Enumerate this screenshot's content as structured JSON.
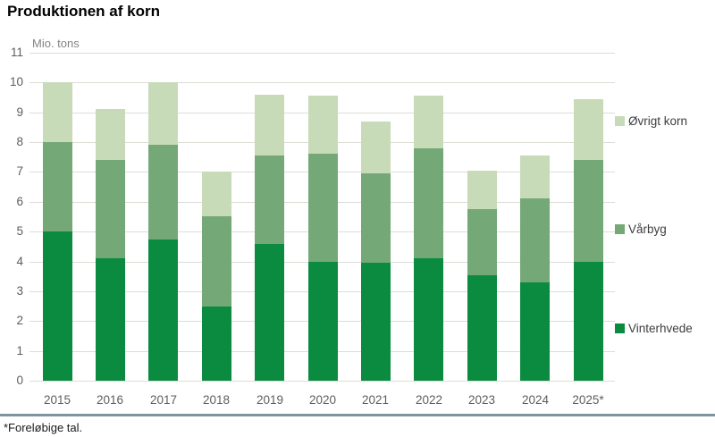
{
  "page": {
    "title": "Produktionen af korn",
    "footnote": "*Foreløbige tal."
  },
  "chart_data": {
    "type": "bar",
    "stacked": true,
    "title": "Produktionen af korn",
    "unit_label": "Mio. tons",
    "categories": [
      "2015",
      "2016",
      "2017",
      "2018",
      "2019",
      "2020",
      "2021",
      "2022",
      "2023",
      "2024",
      "2025*"
    ],
    "series": [
      {
        "name": "Vinterhvede",
        "color": "#0a8b40",
        "values": [
          5.0,
          4.1,
          4.75,
          2.5,
          4.6,
          4.0,
          3.95,
          4.1,
          3.55,
          3.3,
          4.0
        ]
      },
      {
        "name": "Vårbyg",
        "color": "#74a877",
        "values": [
          3.0,
          3.3,
          3.15,
          3.0,
          2.95,
          3.6,
          3.0,
          3.7,
          2.2,
          2.8,
          3.4
        ]
      },
      {
        "name": "Øvrigt korn",
        "color": "#c7dbb8",
        "values": [
          2.0,
          1.7,
          2.1,
          1.5,
          2.05,
          1.95,
          1.75,
          1.75,
          1.3,
          1.45,
          2.05
        ]
      }
    ],
    "stack_totals": [
      10.0,
      9.1,
      10.0,
      7.0,
      9.6,
      9.55,
      8.7,
      9.55,
      7.05,
      7.55,
      9.45
    ],
    "ylim": [
      0,
      11
    ],
    "ytick_step": 1,
    "ytick_labels": [
      "0",
      "1",
      "2",
      "3",
      "4",
      "5",
      "6",
      "7",
      "8",
      "9",
      "10",
      "11"
    ],
    "grid": "horizontal",
    "legend_position": "right",
    "legend_order_top_to_bottom": [
      "Øvrigt korn",
      "Vårbyg",
      "Vinterhvede"
    ],
    "footnote": "*Foreløbige tal.",
    "colors": {
      "vinterhvede": "#0a8b40",
      "varbyg": "#74a877",
      "ovrigt_korn": "#c7dbb8",
      "gridline": "#ddddd5",
      "axis_text": "#5d5d5d",
      "separator": "#7e959f"
    }
  }
}
